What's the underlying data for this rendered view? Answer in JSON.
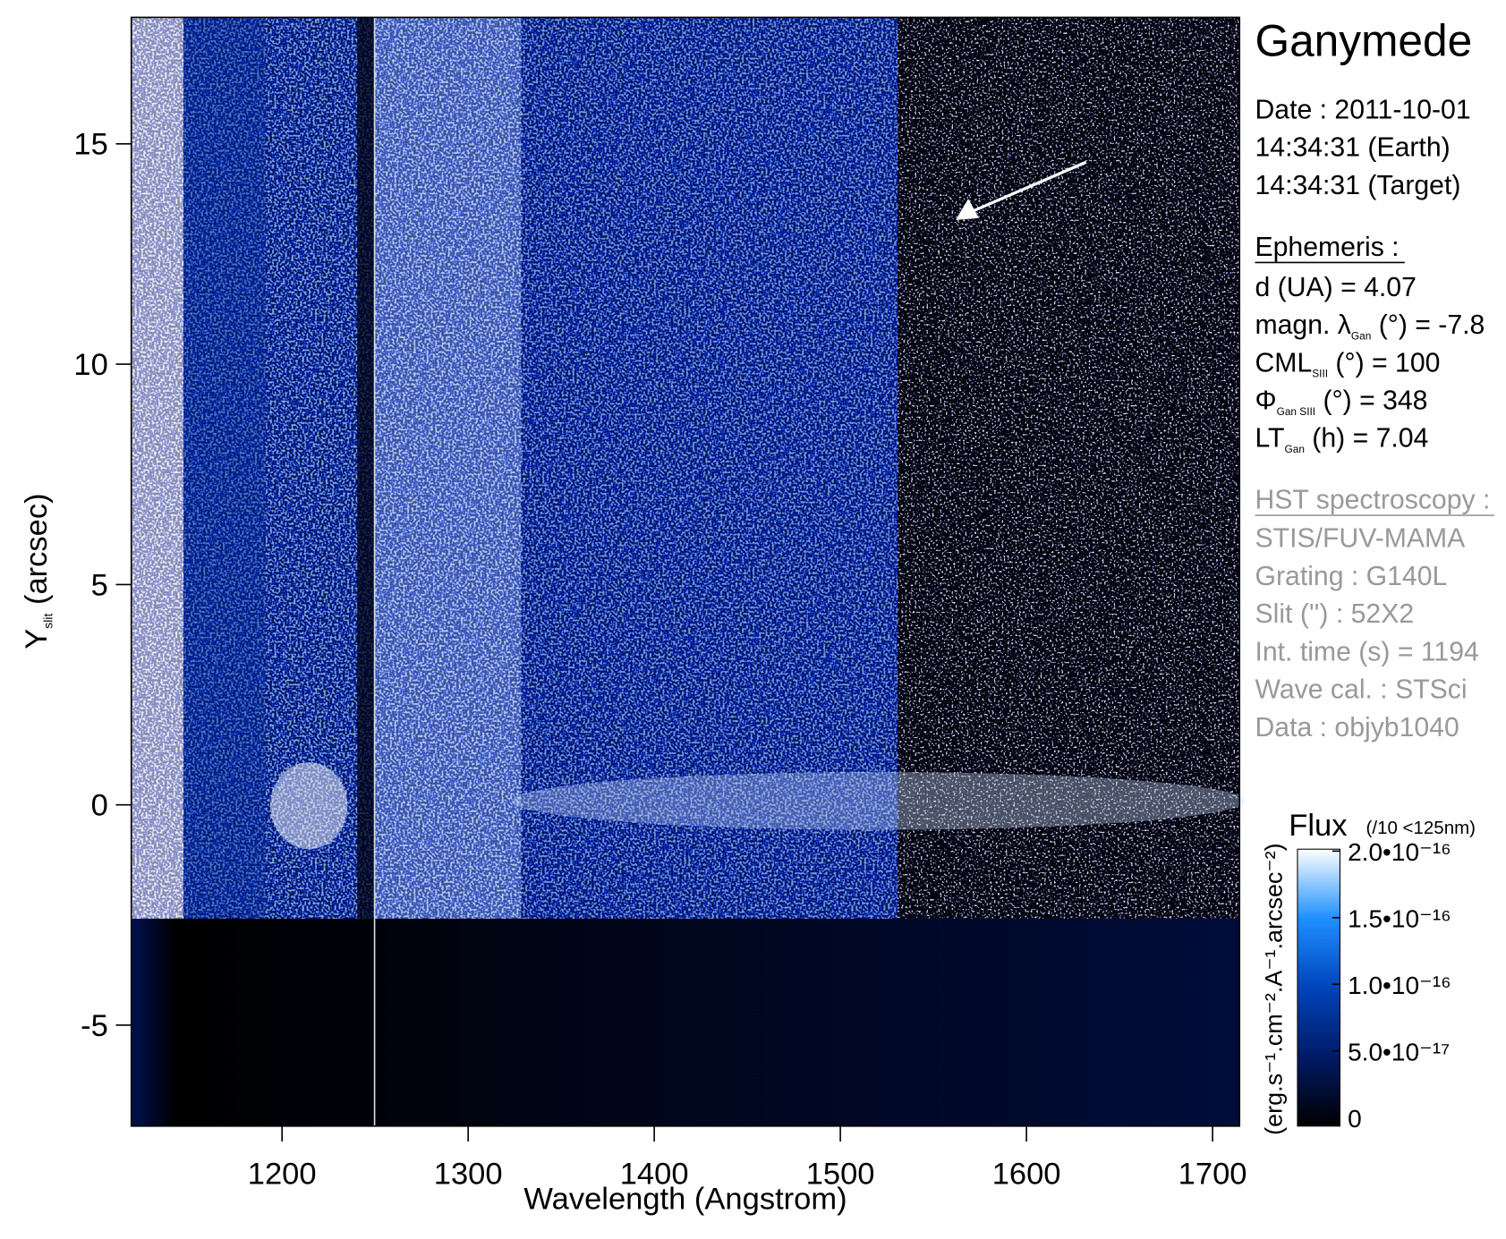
{
  "chart_data": {
    "type": "heatmap",
    "title": "Ganymede",
    "xlabel": "Wavelength (Angstrom)",
    "ylabel": {
      "main": "Y",
      "sub": "slit",
      "tail": " (arcsec)"
    },
    "xlim": [
      1119,
      1714.5
    ],
    "ylim": [
      -7.29,
      17.87
    ],
    "xticks": [
      1200,
      1300,
      1400,
      1500,
      1600,
      1700
    ],
    "yticks": [
      -5,
      0,
      5,
      10,
      15
    ],
    "info": {
      "date": [
        "Date : 2011-10-01",
        "14:34:31 (Earth)",
        "14:34:31 (Target)"
      ],
      "ephemeris_title": "Ephemeris :",
      "ephemeris": [
        {
          "main": "d (UA)     = 4.07"
        },
        {
          "main": "magn. λ",
          "sub": "Gan",
          "tail": " (°)  = -7.8"
        },
        {
          "main": "CML",
          "sub": "SIII",
          "tail": " (°) = 100"
        },
        {
          "main": "Φ",
          "sub": "Gan SIII",
          "tail": " (°) = 348"
        },
        {
          "main": "LT",
          "sub": "Gan",
          "tail": " (h) = 7.04"
        }
      ],
      "hst_title": "HST spectroscopy :",
      "hst": [
        "STIS/FUV-MAMA",
        "Grating : G140L",
        "Slit ('') : 52X2",
        "Int. time (s) = 1194",
        "Wave cal. : STSci",
        "Data : objyb1040"
      ]
    },
    "colorbar": {
      "title": "Flux",
      "note": "(/10 <125nm)",
      "label": "(erg.s⁻¹.cm⁻².A⁻¹.arcsec⁻²)",
      "clim": [
        0,
        2e-16
      ],
      "ticks": [
        {
          "value": 0,
          "label": "0"
        },
        {
          "value": 5e-17,
          "label": "5.0•10⁻¹⁷"
        },
        {
          "value": 1e-16,
          "label": "1.0•10⁻¹⁶"
        },
        {
          "value": 1.5e-16,
          "label": "1.5•10⁻¹⁶"
        },
        {
          "value": 2e-16,
          "label": "2.0•10⁻¹⁶"
        }
      ]
    }
  }
}
